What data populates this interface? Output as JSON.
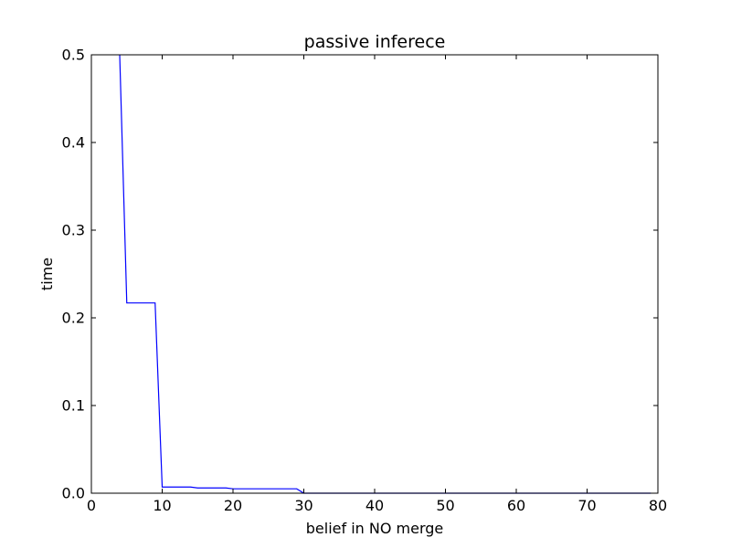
{
  "chart_data": {
    "type": "line",
    "title": "passive inferece",
    "xlabel": "belief in NO merge",
    "ylabel": "time",
    "xlim": [
      0,
      80
    ],
    "ylim": [
      0,
      0.5
    ],
    "xticks": [
      0,
      10,
      20,
      30,
      40,
      50,
      60,
      70,
      80
    ],
    "yticks": [
      0.0,
      0.1,
      0.2,
      0.3,
      0.4,
      0.5
    ],
    "xtick_labels": [
      "0",
      "10",
      "20",
      "30",
      "40",
      "50",
      "60",
      "70",
      "80"
    ],
    "ytick_labels": [
      "0.0",
      "0.1",
      "0.2",
      "0.3",
      "0.4",
      "0.5"
    ],
    "grid": false,
    "series": [
      {
        "color": "#0000ff",
        "x": [
          4,
          5,
          6,
          7,
          8,
          9,
          10,
          11,
          12,
          13,
          14,
          15,
          16,
          17,
          18,
          19,
          20,
          21,
          22,
          23,
          24,
          25,
          26,
          27,
          28,
          29,
          30,
          35,
          40,
          50,
          60,
          70,
          79
        ],
        "y": [
          0.5,
          0.217,
          0.217,
          0.217,
          0.217,
          0.217,
          0.007,
          0.007,
          0.007,
          0.007,
          0.007,
          0.006,
          0.006,
          0.006,
          0.006,
          0.006,
          0.005,
          0.005,
          0.005,
          0.005,
          0.005,
          0.005,
          0.005,
          0.005,
          0.005,
          0.005,
          0.0,
          0.0,
          0.0,
          0.0,
          0.0,
          0.0,
          0.0
        ]
      }
    ]
  }
}
